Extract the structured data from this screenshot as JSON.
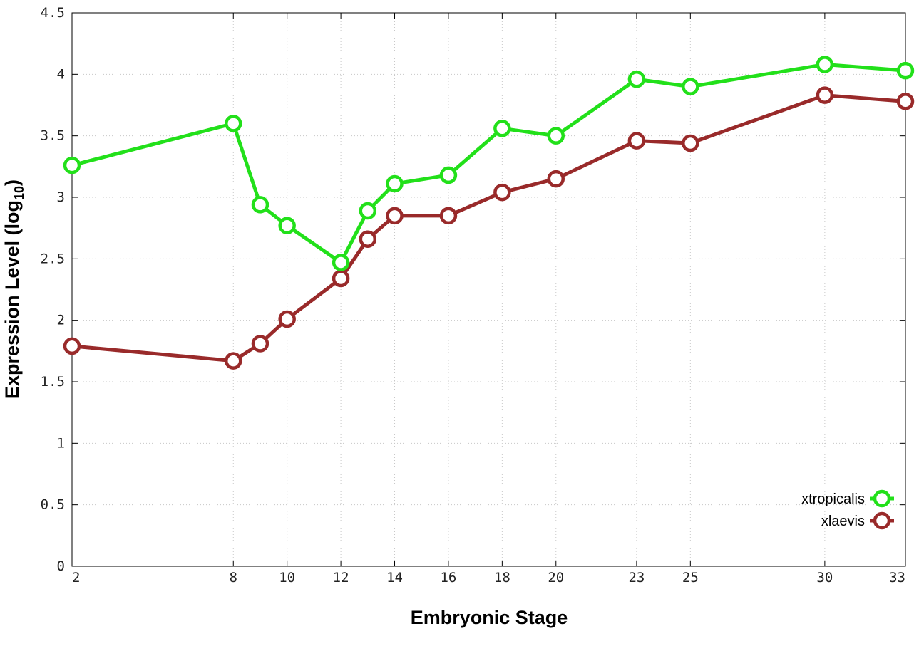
{
  "chart_data": {
    "type": "line",
    "xlabel": "Embryonic Stage",
    "ylabel_main": "Expression Level (log",
    "ylabel_sub": "10",
    "ylabel_close": ")",
    "x": [
      2,
      8,
      9,
      10,
      12,
      13,
      14,
      16,
      18,
      20,
      23,
      25,
      30,
      33
    ],
    "x_tick_labels": [
      "2",
      "8",
      "10",
      "12",
      "14",
      "16",
      "18",
      "20",
      "23",
      "25",
      "30",
      "33"
    ],
    "x_tick_values": [
      2,
      8,
      10,
      12,
      14,
      16,
      18,
      20,
      23,
      25,
      30,
      33
    ],
    "y_ticks": [
      0,
      0.5,
      1,
      1.5,
      2,
      2.5,
      3,
      3.5,
      4,
      4.5
    ],
    "y_tick_labels": [
      "0",
      "0.5",
      "1",
      "1.5",
      "2",
      "2.5",
      "3",
      "3.5",
      "4",
      "4.5"
    ],
    "xlim": [
      2,
      33
    ],
    "ylim": [
      0,
      4.5
    ],
    "grid": true,
    "legend_position": "bottom-right",
    "series": [
      {
        "name": "xtropicalis",
        "color": "#22e01a",
        "values": [
          3.26,
          3.6,
          2.94,
          2.77,
          2.47,
          2.89,
          3.11,
          3.18,
          3.56,
          3.5,
          3.96,
          3.9,
          4.08,
          4.03
        ]
      },
      {
        "name": "xlaevis",
        "color": "#992a2a",
        "values": [
          1.79,
          1.67,
          1.81,
          2.01,
          2.34,
          2.66,
          2.85,
          2.85,
          3.04,
          3.15,
          3.46,
          3.44,
          3.83,
          3.78
        ]
      }
    ]
  }
}
